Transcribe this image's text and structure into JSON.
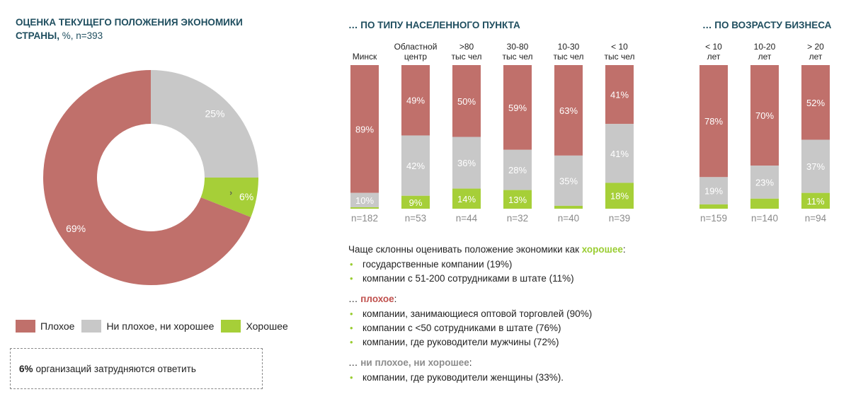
{
  "colors": {
    "bad": "#c0706b",
    "neutral": "#c8c8c8",
    "good": "#a6cf38",
    "title": "#1f4e5f"
  },
  "left_title": {
    "line1": "ОЦЕНКА ТЕКУЩЕГО ПОЛОЖЕНИЯ ЭКОНОМИКИ",
    "line2_bold": "СТРАНЫ,",
    "line2_light": "%, n=393"
  },
  "mid_title": "… ПО ТИПУ НАСЕЛЕННОГО ПУНКТА",
  "right_title": "… ПО ВОЗРАСТУ БИЗНЕСА",
  "legend": {
    "bad": "Плохое",
    "neutral": "Ни плохое, ни хорошее",
    "good": "Хорошее"
  },
  "note": {
    "bold": "6%",
    "text": "организаций затрудняются ответить"
  },
  "chart_data": [
    {
      "type": "pie",
      "title": "ОЦЕНКА ТЕКУЩЕГО ПОЛОЖЕНИЯ ЭКОНОМИКИ СТРАНЫ, %, n=393",
      "labels": [
        "Плохое",
        "Ни плохое, ни хорошее",
        "Хорошее"
      ],
      "values": [
        69,
        25,
        6
      ],
      "donut": true
    },
    {
      "type": "bar",
      "stacked": true,
      "title": "… ПО ТИПУ НАСЕЛЕННОГО ПУНКТА",
      "categories": [
        [
          "Минск"
        ],
        [
          "Областной",
          "центр"
        ],
        [
          ">80",
          "тыс чел"
        ],
        [
          "30-80",
          "тыс чел"
        ],
        [
          "10-30",
          "тыс чел"
        ],
        [
          "< 10",
          "тыс чел"
        ]
      ],
      "n": [
        "n=182",
        "n=53",
        "n=44",
        "n=32",
        "n=40",
        "n=39"
      ],
      "series": [
        {
          "name": "Плохое",
          "values": [
            89,
            49,
            50,
            59,
            63,
            41
          ],
          "labels": [
            "89%",
            "49%",
            "50%",
            "59%",
            "63%",
            "41%"
          ]
        },
        {
          "name": "Ни плохое, ни хорошее",
          "values": [
            10,
            42,
            36,
            28,
            35,
            41
          ],
          "labels": [
            "10%",
            "42%",
            "36%",
            "28%",
            "35%",
            "41%"
          ]
        },
        {
          "name": "Хорошее",
          "values": [
            1,
            9,
            14,
            13,
            2,
            18
          ],
          "labels": [
            "",
            "9%",
            "14%",
            "13%",
            "",
            "18%"
          ]
        }
      ]
    },
    {
      "type": "bar",
      "stacked": true,
      "title": "… ПО ВОЗРАСТУ БИЗНЕСА",
      "categories": [
        [
          "< 10",
          "лет"
        ],
        [
          "10-20",
          "лет"
        ],
        [
          "> 20",
          "лет"
        ]
      ],
      "n": [
        "n=159",
        "n=140",
        "n=94"
      ],
      "series": [
        {
          "name": "Плохое",
          "values": [
            78,
            70,
            52
          ],
          "labels": [
            "78%",
            "70%",
            "52%"
          ]
        },
        {
          "name": "Ни плохое, ни хорошее",
          "values": [
            19,
            23,
            37
          ],
          "labels": [
            "19%",
            "23%",
            "37%"
          ]
        },
        {
          "name": "Хорошее",
          "values": [
            3,
            7,
            11
          ],
          "labels": [
            "",
            "",
            "11%"
          ]
        }
      ]
    }
  ],
  "notes": {
    "head1_prefix": "Чаще склонны оценивать положение экономики как ",
    "head1_highlight": "хорошее",
    "head1_suffix": ":",
    "good_items": [
      "государственные компании (19%)",
      "компании с 51-200 сотрудниками в штате (11%)"
    ],
    "head2_prefix": "… ",
    "head2_highlight": "плохое",
    "head2_suffix": ":",
    "bad_items": [
      "компании, занимающиеся оптовой торговлей (90%)",
      "компании с <50 сотрудниками  в штате (76%)",
      "компании, где руководители мужчины (72%)"
    ],
    "head3_prefix": "… ",
    "head3_highlight": "ни плохое, ни хорошее",
    "head3_suffix": ":",
    "neutral_items": [
      "компании, где руководители женщины (33%)."
    ]
  }
}
